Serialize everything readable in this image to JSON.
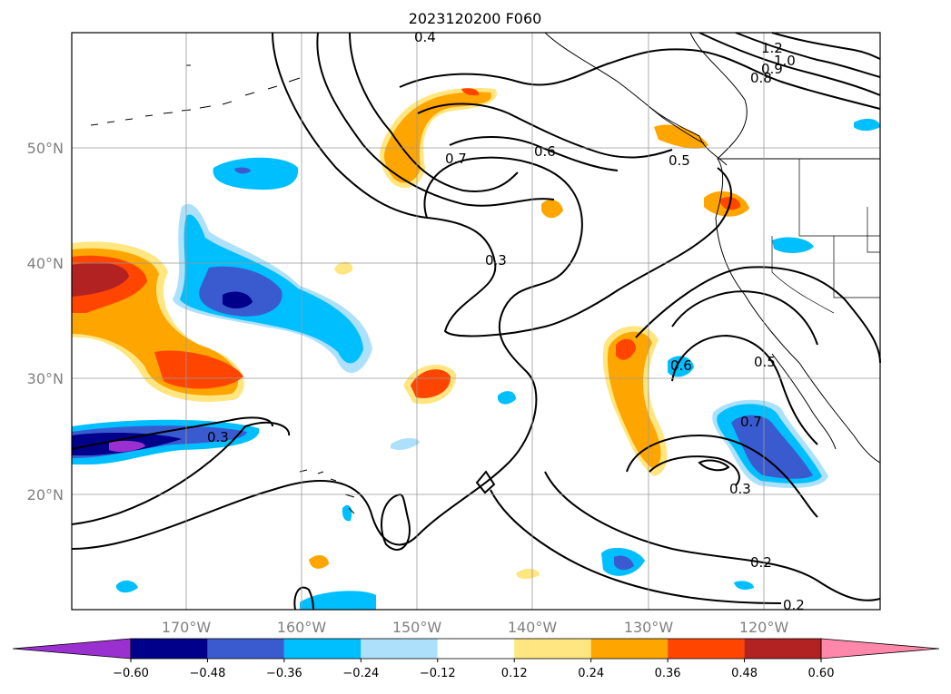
{
  "map": {
    "title": "2023120200 F060",
    "lat_labels": [
      "50°N",
      "40°N",
      "30°N",
      "20°N"
    ],
    "lon_labels": [
      "170°W",
      "160°W",
      "150°W",
      "140°W",
      "130°W",
      "120°W"
    ]
  },
  "colorbar": {
    "ticks": [
      "−0.60",
      "−0.48",
      "−0.36",
      "−0.24",
      "−0.12",
      "0.12",
      "0.24",
      "0.36",
      "0.48",
      "0.60"
    ],
    "colors": [
      "#9b30d0",
      "#00008b",
      "#3a5bd0",
      "#00bfff",
      "#ade1fb",
      "#ffffff",
      "#ffe680",
      "#ffa500",
      "#ff4500",
      "#b22222",
      "#ff88aa"
    ]
  },
  "contour_labels": [
    "0.3",
    "0.4",
    "0.5",
    "0.6",
    "0.7",
    "0.8",
    "0.9",
    "1.0",
    "1.2",
    "0.2",
    "0.3",
    "0.7",
    "0.6",
    "0.5",
    "0.3",
    "0.2"
  ]
}
